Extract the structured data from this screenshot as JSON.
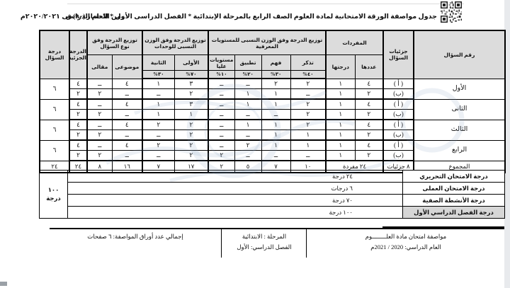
{
  "header": {
    "title": "جدول مواصفة الورقة الامتحانية لمادة العلوم الصف الرابع بالمرحلة الإبتدائية * الفصل الدراسى الأول * للعام الدراسى ٢٠٢٠/٢٠٢١م",
    "exam_time": "زمن الاختبار (٩٠) ق"
  },
  "table": {
    "headers": {
      "question_number": "رقم السؤال",
      "question_parts": "جزئيات السؤال",
      "vocab_group": "المفردات",
      "count": "عددها",
      "score": "درجتها",
      "cognitive_group": "توزيع الدرجة وفق الوزن النسبى للمستويات المعرفية",
      "remember": "تذكر",
      "remember_pct": "٤٠%",
      "understand": "فهم",
      "understand_pct": "٣٠%",
      "apply": "تطبيق",
      "apply_pct": "٢٠%",
      "higher": "مستويات عليا",
      "higher_pct": "١٠%",
      "units_group": "توزيع الدرجة وفق الوزن النسبى للوحدات",
      "unit1": "الأولى",
      "unit1_pct": "٧٠%",
      "unit2": "الثانية",
      "unit2_pct": "٣٠%",
      "type_group": "توزيع الدرجة وفق نوع السؤال",
      "objective": "موضوعى",
      "essay": "مقالى",
      "partial_score": "الدرجة الجزئية",
      "question_score": "درجة السؤال"
    },
    "questions": [
      {
        "number": "الأول",
        "score": "٦",
        "parts": [
          {
            "part": "( أ )",
            "count": "٤",
            "score": "١",
            "remember": "٢",
            "understand": "٢",
            "apply": "ــ",
            "higher": "ــ",
            "unit1": "٣",
            "unit2": "١",
            "objective": "٤",
            "essay": "ــ",
            "partial": "٤"
          },
          {
            "part": "(ب)",
            "count": "٢",
            "score": "١",
            "remember": "ــ",
            "understand": "١",
            "apply": "١",
            "higher": "ــ",
            "unit1": "٢",
            "unit2": "ــ",
            "objective": "ــ",
            "essay": "٢",
            "partial": "٢"
          }
        ]
      },
      {
        "number": "الثانى",
        "score": "٦",
        "parts": [
          {
            "part": "( أ )",
            "count": "٤",
            "score": "١",
            "remember": "٢",
            "understand": "١",
            "apply": "١",
            "higher": "ــ",
            "unit1": "٣",
            "unit2": "١",
            "objective": "٤",
            "essay": "ــ",
            "partial": "٤"
          },
          {
            "part": "(ب)",
            "count": "٢",
            "score": "١",
            "remember": "٢",
            "understand": "ــ",
            "apply": "ــ",
            "higher": "ــ",
            "unit1": "١",
            "unit2": "١",
            "objective": "ــ",
            "essay": "٢",
            "partial": "٢"
          }
        ]
      },
      {
        "number": "الثالث",
        "score": "٦",
        "parts": [
          {
            "part": "( أ )",
            "count": "٤",
            "score": "١",
            "remember": "٢",
            "understand": "١",
            "apply": "١",
            "higher": "ــ",
            "unit1": "٢",
            "unit2": "٢",
            "objective": "٤",
            "essay": "ــ",
            "partial": "٤"
          },
          {
            "part": "(ب)",
            "count": "٢",
            "score": "١",
            "remember": "١",
            "understand": "١",
            "apply": "ــ",
            "higher": "ــ",
            "unit1": "٢",
            "unit2": "ــ",
            "objective": "ــ",
            "essay": "٢",
            "partial": "٢"
          }
        ]
      },
      {
        "number": "الرابع",
        "score": "٦",
        "parts": [
          {
            "part": "( أ )",
            "count": "٤",
            "score": "١",
            "remember": "١",
            "understand": "١",
            "apply": "٢",
            "higher": "ــ",
            "unit1": "٢",
            "unit2": "٢",
            "objective": "٤",
            "essay": "ــ",
            "partial": "٤"
          },
          {
            "part": "(ب)",
            "count": "٢",
            "score": "١",
            "remember": "ــ",
            "understand": "ــ",
            "apply": "ــ",
            "higher": "٢",
            "unit1": "٢",
            "unit2": "ــ",
            "objective": "ــ",
            "essay": "٢",
            "partial": "٢"
          }
        ]
      }
    ],
    "total": {
      "label": "المجموع",
      "parts": "٨ جزئيات",
      "count": "٢٤ مفردة",
      "remember": "١٠",
      "understand": "٧",
      "apply": "٥",
      "higher": "٢",
      "unit1": "١٧",
      "unit2": "٧",
      "objective": "١٦",
      "essay": "٨",
      "partial": "٢٤",
      "question_score": "٢٤"
    }
  },
  "summary": {
    "rows": [
      {
        "label": "درجة الامتحان التحريري",
        "value": "٢٤ درجة"
      },
      {
        "label": "درجة الامتحان العملى",
        "value": "٦ درجات"
      },
      {
        "label": "درجة الأنشطة الصفية",
        "value": "٧٠ درجة"
      },
      {
        "label": "درجة الفصل الدراسي الأول",
        "value": "١٠٠ درجة"
      }
    ],
    "total_line1": "١٠٠",
    "total_line2": "درجة"
  },
  "footer": {
    "right_line1": "مواصفة امتحان مادة العلــــــــوم",
    "right_line2": "العام الدراسي: 2020 / 2021م",
    "middle_line1": "المرحلة :  الابتدائية",
    "middle_line2": "الفصل الدراسي: الأول",
    "left_line": "إجمالي عدد أوراق المواصفة: ٦ صفحات"
  },
  "colors": {
    "header_fill": "#dcdcdc",
    "shaded_label_fill": "#d6d6d6",
    "border": "#000000",
    "watermark": "#7b93bb"
  }
}
